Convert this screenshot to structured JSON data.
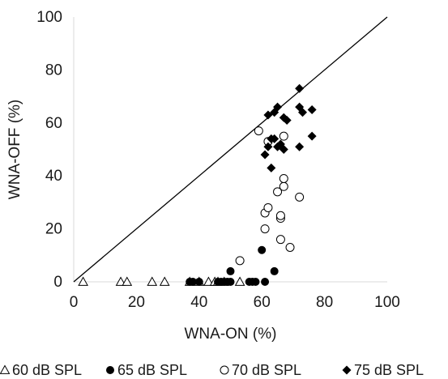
{
  "chart_data": {
    "type": "scatter",
    "xlabel": "WNA-ON (%)",
    "ylabel": "WNA-OFF (%)",
    "xlim": [
      0,
      100
    ],
    "ylim": [
      0,
      100
    ],
    "xticks": [
      "0",
      "20",
      "40",
      "60",
      "80",
      "100"
    ],
    "yticks": [
      "0",
      "20",
      "40",
      "60",
      "80",
      "100"
    ],
    "grid": false,
    "reference_line": {
      "from": [
        0,
        0
      ],
      "to": [
        100,
        100
      ]
    },
    "legend_position": "bottom",
    "series": [
      {
        "name": "60 dB SPL",
        "marker": "open-triangle",
        "points": [
          [
            3,
            0
          ],
          [
            15,
            0
          ],
          [
            17,
            0
          ],
          [
            25,
            0
          ],
          [
            29,
            0
          ],
          [
            37,
            0
          ],
          [
            40,
            0
          ],
          [
            43,
            0
          ],
          [
            45,
            0
          ],
          [
            46,
            0
          ],
          [
            48,
            0
          ],
          [
            53,
            0
          ]
        ]
      },
      {
        "name": "65 dB SPL",
        "marker": "filled-circle",
        "points": [
          [
            37,
            0
          ],
          [
            38,
            0
          ],
          [
            40,
            0
          ],
          [
            46,
            0
          ],
          [
            47,
            0
          ],
          [
            48,
            0
          ],
          [
            49,
            0
          ],
          [
            50,
            0
          ],
          [
            50,
            4
          ],
          [
            56,
            0
          ],
          [
            57,
            0
          ],
          [
            58,
            0
          ],
          [
            60,
            12
          ],
          [
            61,
            0
          ],
          [
            64,
            4
          ]
        ]
      },
      {
        "name": "70 dB SPL",
        "marker": "open-circle",
        "points": [
          [
            53,
            8
          ],
          [
            59,
            57
          ],
          [
            61,
            20
          ],
          [
            61,
            26
          ],
          [
            62,
            28
          ],
          [
            62,
            53
          ],
          [
            65,
            34
          ],
          [
            66,
            16
          ],
          [
            66,
            24
          ],
          [
            66,
            25
          ],
          [
            67,
            55
          ],
          [
            67,
            36
          ],
          [
            67,
            39
          ],
          [
            69,
            13
          ],
          [
            72,
            32
          ]
        ]
      },
      {
        "name": "75 dB SPL",
        "marker": "filled-diamond",
        "points": [
          [
            61,
            48
          ],
          [
            62,
            51
          ],
          [
            62,
            63
          ],
          [
            63,
            43
          ],
          [
            63,
            54
          ],
          [
            64,
            54
          ],
          [
            64,
            64
          ],
          [
            65,
            51
          ],
          [
            65,
            66
          ],
          [
            66,
            52
          ],
          [
            67,
            50
          ],
          [
            67,
            62
          ],
          [
            68,
            61
          ],
          [
            72,
            51
          ],
          [
            72,
            66
          ],
          [
            72,
            73
          ],
          [
            73,
            64
          ],
          [
            76,
            55
          ],
          [
            76,
            65
          ]
        ]
      }
    ],
    "colors": {
      "marker": "#000000",
      "background": "#ffffff",
      "text": "#1a1a1a"
    }
  }
}
